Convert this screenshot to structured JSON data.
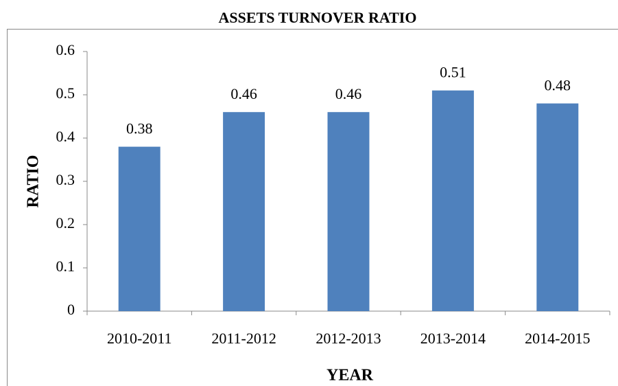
{
  "chart_data": {
    "type": "bar",
    "title": "ASSETS TURNOVER RATIO",
    "x_label": "YEAR",
    "y_label": "RATIO",
    "categories": [
      "2010-2011",
      "2011-2012",
      "2012-2013",
      "2013-2014",
      "2014-2015"
    ],
    "values": [
      0.38,
      0.46,
      0.46,
      0.51,
      0.48
    ],
    "color": "#4f81bd",
    "ylim": [
      0,
      0.6
    ],
    "yticks": [
      0,
      0.1,
      0.2,
      0.3,
      0.4,
      0.5,
      0.6
    ],
    "grid": false
  }
}
